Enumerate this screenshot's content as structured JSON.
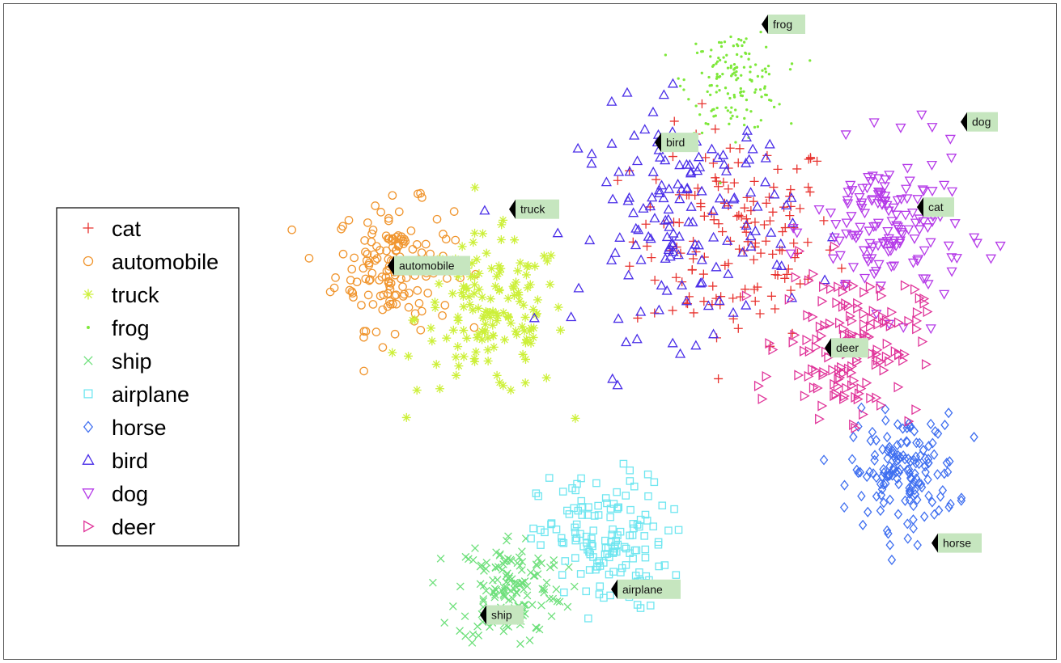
{
  "chart_data": {
    "type": "scatter",
    "title": "",
    "xlabel": "",
    "ylabel": "",
    "grid": false,
    "legend_position": "left",
    "classes": [
      {
        "name": "cat",
        "marker": "plus",
        "color": "#e8332f"
      },
      {
        "name": "automobile",
        "marker": "circle",
        "color": "#f0952e"
      },
      {
        "name": "truck",
        "marker": "star",
        "color": "#cdf03a"
      },
      {
        "name": "frog",
        "marker": "dot",
        "color": "#7ee83a"
      },
      {
        "name": "ship",
        "marker": "x",
        "color": "#6fe07c"
      },
      {
        "name": "airplane",
        "marker": "square",
        "color": "#6fe6f0"
      },
      {
        "name": "horse",
        "marker": "diamond",
        "color": "#3f6ff0"
      },
      {
        "name": "bird",
        "marker": "triangle-up",
        "color": "#4a2ee8"
      },
      {
        "name": "dog",
        "marker": "triangle-down",
        "color": "#b53ae8"
      },
      {
        "name": "deer",
        "marker": "triangle-right",
        "color": "#e0359a"
      }
    ],
    "cluster_labels": [
      "frog",
      "cat",
      "bird",
      "dog",
      "truck",
      "automobile",
      "deer",
      "horse",
      "ship",
      "airplane"
    ],
    "clusters": [
      {
        "class": "cat",
        "centroid": [
          0.1,
          0.42
        ],
        "spread": 0.95
      },
      {
        "class": "automobile",
        "centroid": [
          -3.4,
          0.15
        ],
        "spread": 0.55
      },
      {
        "class": "truck",
        "centroid": [
          -2.4,
          -0.35
        ],
        "spread": 0.7
      },
      {
        "class": "frog",
        "centroid": [
          0.1,
          1.95
        ],
        "spread": 0.45
      },
      {
        "class": "ship",
        "centroid": [
          -2.2,
          -3.0
        ],
        "spread": 0.5
      },
      {
        "class": "airplane",
        "centroid": [
          -1.25,
          -2.55
        ],
        "spread": 0.6
      },
      {
        "class": "horse",
        "centroid": [
          1.85,
          -1.85
        ],
        "spread": 0.5
      },
      {
        "class": "bird",
        "centroid": [
          -0.4,
          0.6
        ],
        "spread": 1.0
      },
      {
        "class": "dog",
        "centroid": [
          1.7,
          0.5
        ],
        "spread": 0.7
      },
      {
        "class": "deer",
        "centroid": [
          1.3,
          -0.6
        ],
        "spread": 0.65
      }
    ],
    "xlim": [
      -4.5,
      3.0
    ],
    "ylim": [
      -3.6,
      2.5
    ]
  }
}
